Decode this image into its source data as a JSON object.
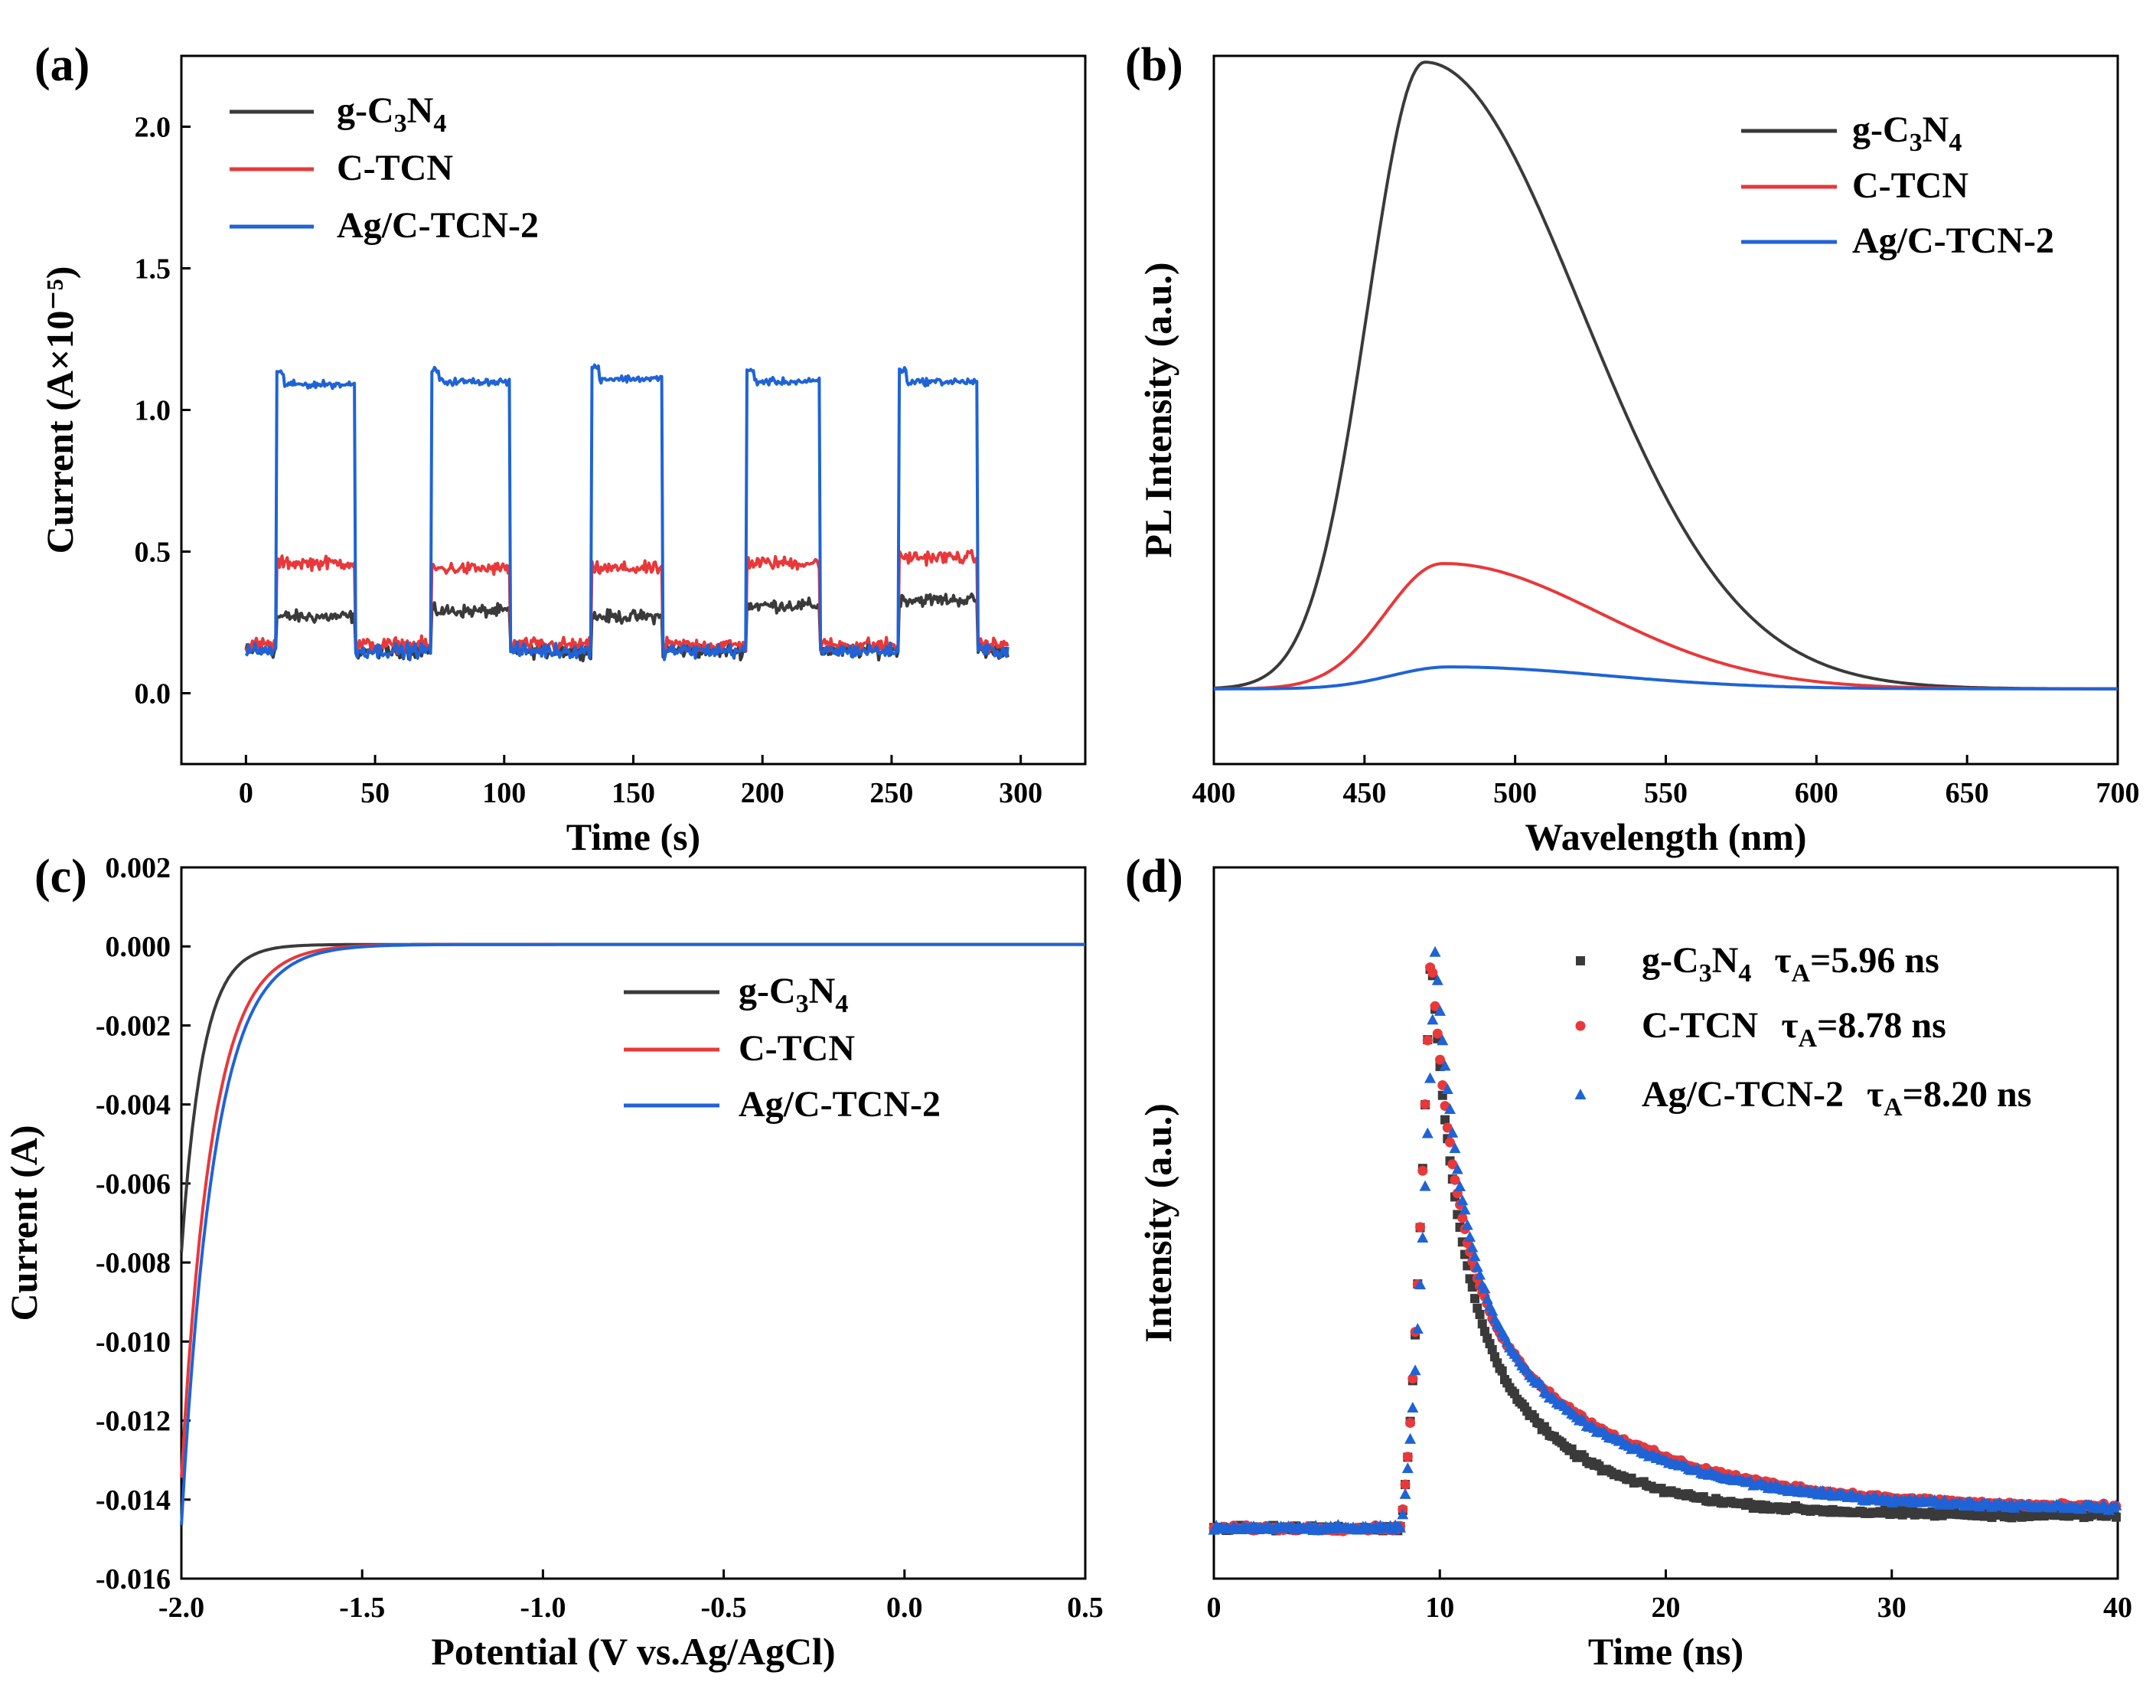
{
  "colors": {
    "g_c3n4": "#3a3a3a",
    "c_tcn": "#e8383a",
    "ag_ctcn2": "#1f63d6"
  },
  "chart_data": [
    {
      "id": "a",
      "panel_label": "(a)",
      "type": "line",
      "title": "",
      "xlabel": "Time (s)",
      "ylabel": "Current (A×10⁻⁵)",
      "xlim": [
        -25,
        325
      ],
      "ylim": [
        -0.25,
        2.25
      ],
      "xticks": [
        0,
        50,
        100,
        150,
        200,
        250,
        300
      ],
      "xtick_labels": [
        "0",
        "50",
        "100",
        "150",
        "200",
        "250",
        "300"
      ],
      "yticks": [
        0.0,
        0.5,
        1.0,
        1.5,
        2.0
      ],
      "ytick_labels": [
        "0.0",
        "0.5",
        "1.0",
        "1.5",
        "2.0"
      ],
      "legend_position": "top-left",
      "light_on_intervals": [
        [
          12,
          42
        ],
        [
          72,
          102
        ],
        [
          134,
          161
        ],
        [
          194,
          222
        ],
        [
          253,
          283
        ]
      ],
      "x_range": [
        0,
        295
      ],
      "series": [
        {
          "key": "g_c3n4",
          "name": "g-C₃N₄",
          "label_base": "g-C",
          "label_sub1": "3",
          "label_mid": "N",
          "label_sub2": "4",
          "dark": 0.15,
          "light": [
            0.27,
            0.29,
            0.27,
            0.31,
            0.33
          ]
        },
        {
          "key": "c_tcn",
          "name": "C-TCN",
          "label_base": "C-TCN",
          "dark": 0.17,
          "light": [
            0.46,
            0.44,
            0.44,
            0.46,
            0.48
          ]
        },
        {
          "key": "ag_ctcn2",
          "name": "Ag/C-TCN-2",
          "label_base": "Ag/C-TCN-2",
          "dark": 0.15,
          "light": [
            1.09,
            1.1,
            1.11,
            1.1,
            1.1
          ]
        }
      ]
    },
    {
      "id": "b",
      "panel_label": "(b)",
      "type": "line",
      "title": "",
      "xlabel": "Wavelength (nm)",
      "ylabel": "PL Intensity (a.u.)",
      "xlim": [
        400,
        700
      ],
      "ylim": [
        0,
        1.13
      ],
      "xticks": [
        400,
        450,
        500,
        550,
        600,
        650,
        700
      ],
      "xtick_labels": [
        "400",
        "450",
        "500",
        "550",
        "600",
        "650",
        "700"
      ],
      "yticks": [],
      "legend_position": "top-right",
      "series": [
        {
          "key": "g_c3n4",
          "name": "g-C₃N₄",
          "label_base": "g-C",
          "label_sub1": "3",
          "label_mid": "N",
          "label_sub2": "4",
          "peak_nm": 470,
          "peak_height": 1.0,
          "base": 0.12
        },
        {
          "key": "c_tcn",
          "name": "C-TCN",
          "label_base": "C-TCN",
          "peak_nm": 476,
          "peak_height": 0.2,
          "base": 0.12
        },
        {
          "key": "ag_ctcn2",
          "name": "Ag/C-TCN-2",
          "label_base": "Ag/C-TCN-2",
          "peak_nm": 478,
          "peak_height": 0.035,
          "base": 0.12
        }
      ]
    },
    {
      "id": "c",
      "panel_label": "(c)",
      "type": "line",
      "title": "",
      "xlabel": "Potential (V vs.Ag/AgCl)",
      "ylabel": "Current (A)",
      "xlim": [
        -2.0,
        0.5
      ],
      "ylim": [
        -0.016,
        0.002
      ],
      "xticks": [
        -2.0,
        -1.5,
        -1.0,
        -0.5,
        0.0,
        0.5
      ],
      "xtick_labels": [
        "-2.0",
        "-1.5",
        "-1.0",
        "-0.5",
        "0.0",
        "0.5"
      ],
      "yticks": [
        -0.016,
        -0.014,
        -0.012,
        -0.01,
        -0.008,
        -0.006,
        -0.004,
        -0.002,
        0.0,
        0.002
      ],
      "ytick_labels": [
        "-0.016",
        "-0.014",
        "-0.012",
        "-0.010",
        "-0.008",
        "-0.006",
        "-0.004",
        "-0.002",
        "0.000",
        "0.002"
      ],
      "legend_position": "center-right",
      "series": [
        {
          "key": "g_c3n4",
          "name": "g-C₃N₄",
          "label_base": "g-C",
          "label_sub1": "3",
          "label_mid": "N",
          "label_sub2": "4",
          "current_at_minus2": -0.0078,
          "onset_v": -1.65
        },
        {
          "key": "c_tcn",
          "name": "C-TCN",
          "label_base": "C-TCN",
          "current_at_minus2": -0.0135,
          "onset_v": -1.45
        },
        {
          "key": "ag_ctcn2",
          "name": "Ag/C-TCN-2",
          "label_base": "Ag/C-TCN-2",
          "current_at_minus2": -0.0147,
          "onset_v": -1.4
        }
      ]
    },
    {
      "id": "d",
      "panel_label": "(d)",
      "type": "scatter",
      "title": "",
      "xlabel": "Time (ns)",
      "ylabel": "Intensity (a.u.)",
      "xlim": [
        0,
        40
      ],
      "ylim": [
        0,
        1.13
      ],
      "xticks": [
        0,
        10,
        20,
        30,
        40
      ],
      "xtick_labels": [
        "0",
        "10",
        "20",
        "30",
        "40"
      ],
      "yticks": [],
      "legend_position": "top-right",
      "series": [
        {
          "key": "g_c3n4",
          "name": "g-C₃N₄",
          "marker": "square",
          "label_base": "g-C",
          "label_sub1": "3",
          "label_mid": "N",
          "label_sub2": "4",
          "tau_text": "=5.96  ns",
          "tau_ns": 5.96,
          "peak_ns": 9.6,
          "tail": 0.02
        },
        {
          "key": "c_tcn",
          "name": "C-TCN",
          "marker": "circle",
          "label_base": "C-TCN",
          "tau_text": "=8.78 ns",
          "tau_ns": 8.78,
          "peak_ns": 9.6,
          "tail": 0.03
        },
        {
          "key": "ag_ctcn2",
          "name": "Ag/C-TCN-2",
          "marker": "triangle",
          "label_base": "Ag/C-TCN-2",
          "tau_text": "=8.20  ns",
          "tau_ns": 8.2,
          "peak_ns": 9.8,
          "tail": 0.03
        }
      ]
    }
  ]
}
